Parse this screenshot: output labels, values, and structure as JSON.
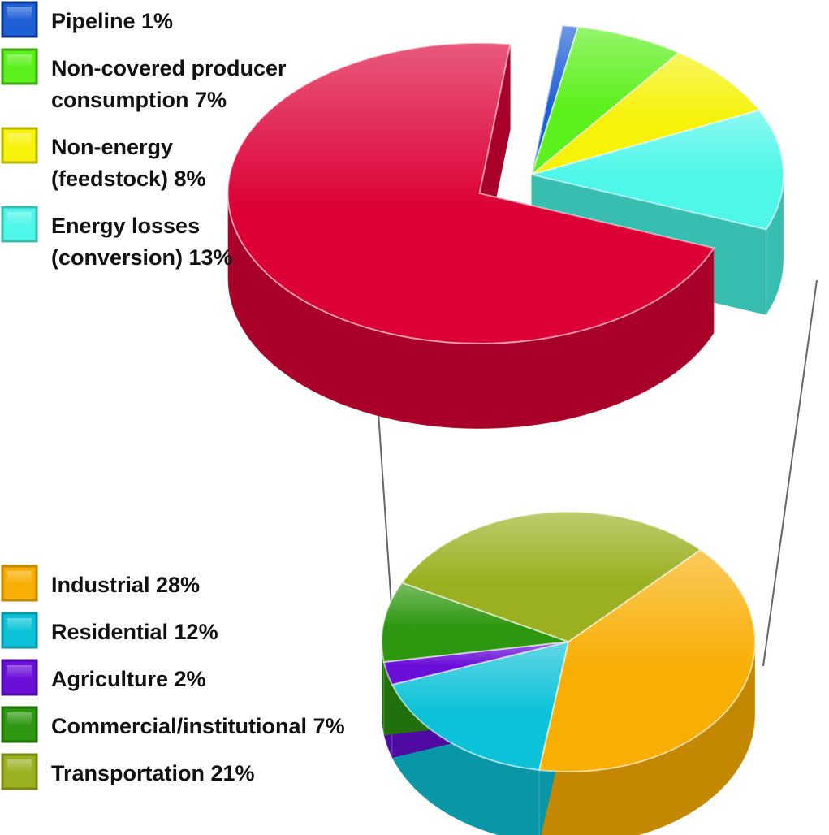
{
  "chart_data": [
    {
      "type": "pie",
      "title": "",
      "legend_position": "top-left",
      "slices": [
        {
          "label": [
            "Pipeline 1%"
          ],
          "value": 1,
          "color": "#1e5fd6",
          "side_color": "#123c8c"
        },
        {
          "label": [
            "Non-covered producer",
            "consumption 7%"
          ],
          "value": 7,
          "color": "#5cf01c",
          "side_color": "#3ea812"
        },
        {
          "label": [
            "Non-energy",
            "(feedstock) 8%"
          ],
          "value": 8,
          "color": "#f6f20a",
          "side_color": "#b7b400"
        },
        {
          "label": [
            "Energy losses",
            "(conversion) 13%"
          ],
          "value": 13,
          "color": "#4ff6ea",
          "side_color": "#38bdb1"
        },
        {
          "label": [],
          "value": 71,
          "color": "#dc0036",
          "side_color": "#a80028",
          "exploded": true
        }
      ]
    },
    {
      "type": "pie",
      "title": "",
      "legend_position": "bottom-left",
      "detail_of": "exploded slice of first pie",
      "slices": [
        {
          "label": [
            "Industrial 28%"
          ],
          "value": 28,
          "color": "#f8ae02",
          "side_color": "#c48800"
        },
        {
          "label": [
            "Residential 12%"
          ],
          "value": 12,
          "color": "#0cc2d8",
          "side_color": "#0996a6"
        },
        {
          "label": [
            "Agriculture 2%"
          ],
          "value": 2,
          "color": "#6a0fd8",
          "side_color": "#4e0aa3"
        },
        {
          "label": [
            "Commercial/institutional 7%"
          ],
          "value": 7,
          "color": "#2e9710",
          "side_color": "#21700b"
        },
        {
          "label": [
            "Transportation 21%"
          ],
          "value": 21,
          "color": "#9ab021",
          "side_color": "#778a14"
        }
      ]
    }
  ]
}
